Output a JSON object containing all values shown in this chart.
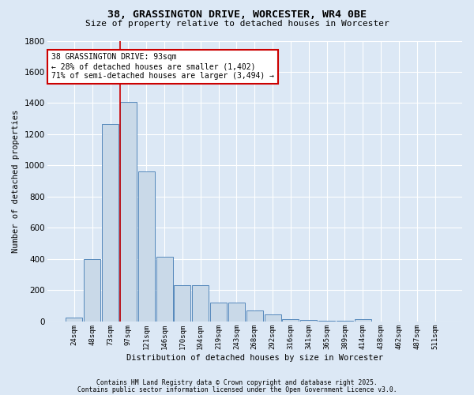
{
  "title_line1": "38, GRASSINGTON DRIVE, WORCESTER, WR4 0BE",
  "title_line2": "Size of property relative to detached houses in Worcester",
  "xlabel": "Distribution of detached houses by size in Worcester",
  "ylabel": "Number of detached properties",
  "bar_labels": [
    "24sqm",
    "48sqm",
    "73sqm",
    "97sqm",
    "121sqm",
    "146sqm",
    "170sqm",
    "194sqm",
    "219sqm",
    "243sqm",
    "268sqm",
    "292sqm",
    "316sqm",
    "341sqm",
    "365sqm",
    "389sqm",
    "414sqm",
    "438sqm",
    "462sqm",
    "487sqm",
    "511sqm"
  ],
  "bar_values": [
    25,
    400,
    1265,
    1405,
    960,
    415,
    235,
    235,
    120,
    120,
    70,
    45,
    15,
    10,
    5,
    5,
    15,
    2,
    2,
    2,
    2
  ],
  "bar_color": "#c9d9e8",
  "bar_edge_color": "#5588bb",
  "bg_color": "#dce8f5",
  "grid_color": "#ffffff",
  "red_line_index": 3,
  "annotation_text": "38 GRASSINGTON DRIVE: 93sqm\n← 28% of detached houses are smaller (1,402)\n71% of semi-detached houses are larger (3,494) →",
  "annotation_box_color": "#ffffff",
  "annotation_box_edge": "#cc0000",
  "ylim": [
    0,
    1800
  ],
  "yticks": [
    0,
    200,
    400,
    600,
    800,
    1000,
    1200,
    1400,
    1600,
    1800
  ],
  "footnote1": "Contains HM Land Registry data © Crown copyright and database right 2025.",
  "footnote2": "Contains public sector information licensed under the Open Government Licence v3.0."
}
